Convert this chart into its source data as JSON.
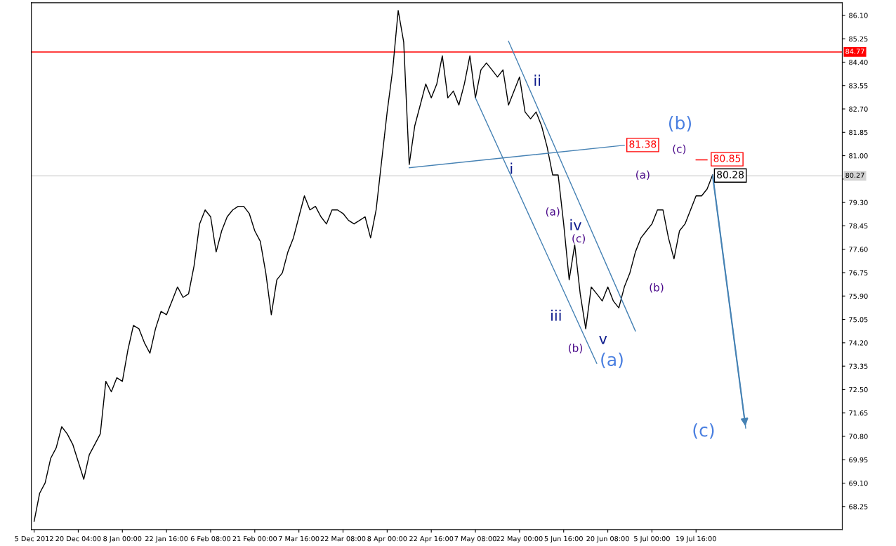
{
  "chart_data": {
    "type": "line",
    "categories": [
      "5 Dec 2012",
      null,
      null,
      null,
      null,
      null,
      null,
      null,
      "20 Dec 04:00",
      null,
      null,
      null,
      null,
      null,
      null,
      null,
      "8 Jan 00:00",
      null,
      null,
      null,
      null,
      null,
      null,
      null,
      "22 Jan 16:00",
      null,
      null,
      null,
      null,
      null,
      null,
      null,
      "6 Feb 08:00",
      null,
      null,
      null,
      null,
      null,
      null,
      null,
      "21 Feb 00:00",
      null,
      null,
      null,
      null,
      null,
      null,
      null,
      "7 Mar 16:00",
      null,
      null,
      null,
      null,
      null,
      null,
      null,
      "22 Mar 08:00",
      null,
      null,
      null,
      null,
      null,
      null,
      null,
      "8 Apr 00:00",
      null,
      null,
      null,
      null,
      null,
      null,
      null,
      "22 Apr 16:00",
      null,
      null,
      null,
      null,
      null,
      null,
      null,
      "7 May 08:00",
      null,
      null,
      null,
      null,
      null,
      null,
      null,
      "22 May 00:00",
      null,
      null,
      null,
      null,
      null,
      null,
      null,
      "5 Jun 16:00",
      null,
      null,
      null,
      null,
      null,
      null,
      null,
      "20 Jun 08:00",
      null,
      null,
      null,
      null,
      null,
      null,
      null,
      "5 Jul 00:00",
      null,
      null,
      null,
      null,
      null,
      null,
      null,
      "19 Jul 16:00",
      null,
      null,
      null,
      null,
      null,
      null,
      null,
      null,
      null,
      null,
      null,
      null,
      null,
      null,
      null,
      null,
      null,
      null,
      null,
      null,
      null,
      null,
      null,
      null,
      null,
      null
    ],
    "ylim": [
      67.41,
      86.56
    ],
    "yticks": [
      {
        "value": 68.25,
        "label": "68.25"
      },
      {
        "value": 69.1,
        "label": "69.10"
      },
      {
        "value": 69.95,
        "label": "69.95"
      },
      {
        "value": 70.8,
        "label": "70.80"
      },
      {
        "value": 71.65,
        "label": "71.65"
      },
      {
        "value": 72.5,
        "label": "72.50"
      },
      {
        "value": 73.35,
        "label": "73.35"
      },
      {
        "value": 74.2,
        "label": "74.20"
      },
      {
        "value": 75.05,
        "label": "75.05"
      },
      {
        "value": 75.9,
        "label": "75.90"
      },
      {
        "value": 76.75,
        "label": "76.75"
      },
      {
        "value": 77.6,
        "label": "77.60"
      },
      {
        "value": 78.45,
        "label": "78.45"
      },
      {
        "value": 79.3,
        "label": "79.30"
      },
      {
        "value": 80.15,
        "label": null
      },
      {
        "value": 81.0,
        "label": "81.00"
      },
      {
        "value": 81.85,
        "label": "81.85"
      },
      {
        "value": 82.7,
        "label": "82.70"
      },
      {
        "value": 83.55,
        "label": "83.55"
      },
      {
        "value": 84.4,
        "label": "84.40"
      },
      {
        "value": 85.25,
        "label": "85.25"
      },
      {
        "value": 86.1,
        "label": "86.10"
      }
    ],
    "grid": false,
    "legend": false,
    "series": [
      {
        "color": "#000000",
        "values": [
          67.71,
          68.73,
          69.11,
          70.0,
          70.38,
          71.15,
          70.89,
          70.51,
          69.88,
          69.24,
          70.13,
          70.51,
          70.89,
          72.8,
          72.42,
          72.93,
          72.8,
          73.94,
          74.83,
          74.71,
          74.2,
          73.82,
          74.71,
          75.34,
          75.22,
          75.72,
          76.23,
          75.85,
          75.98,
          77.0,
          78.52,
          79.03,
          78.78,
          77.5,
          78.27,
          78.78,
          79.03,
          79.16,
          79.16,
          78.9,
          78.27,
          77.89,
          76.74,
          75.22,
          76.49,
          76.74,
          77.5,
          78.01,
          78.78,
          79.54,
          79.03,
          79.16,
          78.78,
          78.52,
          79.03,
          79.03,
          78.9,
          78.65,
          78.52,
          78.65,
          78.78,
          78.01,
          79.03,
          80.81,
          82.59,
          84.12,
          86.28,
          85.13,
          80.68,
          82.08,
          82.84,
          83.61,
          83.1,
          83.61,
          84.63,
          83.1,
          83.35,
          82.84,
          83.61,
          84.63,
          83.1,
          84.12,
          84.37,
          84.12,
          83.86,
          84.12,
          82.84,
          83.35,
          83.86,
          82.59,
          82.34,
          82.59,
          82.08,
          81.32,
          80.3,
          80.3,
          78.52,
          76.49,
          77.76,
          75.98,
          74.71,
          76.23,
          75.98,
          75.72,
          76.23,
          75.72,
          75.47,
          76.23,
          76.74,
          77.5,
          78.01,
          78.27,
          78.52,
          79.03,
          79.03,
          78.01,
          77.25,
          78.27,
          78.52,
          79.03,
          79.54,
          79.54,
          79.79,
          80.3,
          null,
          null,
          null,
          null,
          null,
          null,
          null,
          null,
          null,
          null,
          null,
          null,
          null,
          null,
          null,
          null,
          null,
          null,
          null,
          null,
          null,
          null,
          null
        ]
      },
      {
        "color": "#4682b4",
        "values": [
          null,
          null,
          null,
          null,
          null,
          null,
          null,
          null,
          null,
          null,
          null,
          null,
          null,
          null,
          null,
          null,
          null,
          null,
          null,
          null,
          null,
          null,
          null,
          null,
          null,
          null,
          null,
          null,
          null,
          null,
          null,
          null,
          null,
          null,
          null,
          null,
          null,
          null,
          null,
          null,
          null,
          null,
          null,
          null,
          null,
          null,
          null,
          null,
          null,
          null,
          null,
          null,
          null,
          null,
          null,
          null,
          null,
          null,
          null,
          null,
          null,
          null,
          null,
          null,
          null,
          null,
          null,
          null,
          null,
          null,
          null,
          null,
          null,
          null,
          null,
          null,
          null,
          null,
          null,
          null,
          null,
          null,
          null,
          null,
          null,
          null,
          85.16,
          null,
          null,
          null,
          null,
          null,
          null,
          null,
          null,
          null,
          null,
          null,
          null,
          null,
          null,
          null,
          null,
          null,
          null,
          null,
          null,
          null,
          null,
          74.63,
          null,
          null,
          null,
          null,
          null,
          null,
          null,
          null,
          null,
          null,
          null,
          null,
          null,
          null,
          null,
          null,
          null,
          null,
          null,
          null,
          null,
          null,
          null,
          null,
          null,
          null,
          null,
          null,
          null,
          null,
          null,
          null,
          null,
          null,
          null,
          null,
          null
        ]
      },
      {
        "color": "#4682b4",
        "values": [
          null,
          null,
          null,
          null,
          null,
          null,
          null,
          null,
          null,
          null,
          null,
          null,
          null,
          null,
          null,
          null,
          null,
          null,
          null,
          null,
          null,
          null,
          null,
          null,
          null,
          null,
          null,
          null,
          null,
          null,
          null,
          null,
          null,
          null,
          null,
          null,
          null,
          null,
          null,
          null,
          null,
          null,
          null,
          null,
          null,
          null,
          null,
          null,
          null,
          null,
          null,
          null,
          null,
          null,
          null,
          null,
          null,
          null,
          null,
          null,
          null,
          null,
          null,
          null,
          null,
          null,
          null,
          null,
          null,
          null,
          null,
          null,
          null,
          null,
          null,
          null,
          null,
          null,
          null,
          null,
          83.1,
          null,
          null,
          null,
          null,
          null,
          null,
          null,
          null,
          null,
          null,
          null,
          null,
          null,
          null,
          null,
          null,
          null,
          null,
          null,
          null,
          null,
          73.45,
          null,
          null,
          null,
          null,
          null,
          null,
          null,
          null,
          null,
          null,
          null,
          null,
          null,
          null,
          null,
          null,
          null,
          null,
          null,
          null,
          null,
          null,
          null,
          null,
          null,
          null,
          null,
          null,
          null,
          null,
          null,
          null,
          null,
          null,
          null,
          null,
          null,
          null,
          null,
          null,
          null,
          null,
          null,
          null
        ]
      },
      {
        "color": "#4682b4",
        "values": [
          null,
          null,
          null,
          null,
          null,
          null,
          null,
          null,
          null,
          null,
          null,
          null,
          null,
          null,
          null,
          null,
          null,
          null,
          null,
          null,
          null,
          null,
          null,
          null,
          null,
          null,
          null,
          null,
          null,
          null,
          null,
          null,
          null,
          null,
          null,
          null,
          null,
          null,
          null,
          null,
          null,
          null,
          null,
          null,
          null,
          null,
          null,
          null,
          null,
          null,
          null,
          null,
          null,
          null,
          null,
          null,
          null,
          null,
          null,
          null,
          null,
          null,
          null,
          null,
          null,
          null,
          null,
          null,
          80.56,
          null,
          null,
          null,
          null,
          null,
          null,
          null,
          null,
          null,
          null,
          null,
          null,
          null,
          null,
          null,
          null,
          null,
          null,
          null,
          null,
          null,
          null,
          null,
          null,
          null,
          null,
          null,
          null,
          null,
          null,
          null,
          null,
          null,
          null,
          null,
          null,
          null,
          null,
          81.38,
          null,
          null,
          null,
          null,
          null,
          null,
          null,
          null,
          null,
          null,
          null,
          null,
          null,
          null,
          null,
          null,
          null,
          null,
          null,
          null,
          null,
          null,
          null,
          null,
          null,
          null,
          null,
          null,
          null,
          null,
          null,
          null,
          null,
          null,
          null,
          null,
          null,
          null,
          null
        ]
      },
      {
        "color": "#ff0000",
        "values": [
          null,
          null,
          null,
          null,
          null,
          null,
          null,
          null,
          null,
          null,
          null,
          null,
          null,
          null,
          null,
          null,
          null,
          null,
          null,
          null,
          null,
          null,
          null,
          null,
          null,
          null,
          null,
          null,
          null,
          null,
          null,
          null,
          null,
          null,
          null,
          null,
          null,
          null,
          null,
          null,
          null,
          null,
          null,
          null,
          null,
          null,
          null,
          null,
          null,
          null,
          null,
          null,
          null,
          null,
          null,
          null,
          null,
          null,
          null,
          null,
          null,
          null,
          null,
          null,
          null,
          null,
          null,
          null,
          null,
          null,
          null,
          null,
          null,
          null,
          null,
          null,
          null,
          null,
          null,
          null,
          null,
          null,
          null,
          null,
          null,
          null,
          null,
          null,
          null,
          null,
          null,
          null,
          null,
          null,
          null,
          null,
          null,
          null,
          null,
          null,
          null,
          null,
          null,
          null,
          null,
          null,
          null,
          null,
          null,
          null,
          null,
          null,
          null,
          null,
          null,
          null,
          null,
          null,
          null,
          null,
          80.85,
          null,
          80.85,
          null,
          null,
          null,
          null,
          null,
          null,
          null,
          null,
          null,
          null,
          null,
          null,
          null,
          null,
          null,
          null,
          null,
          null,
          null,
          null,
          null,
          null,
          null,
          null
        ]
      },
      {
        "color": "#4682b4",
        "values": [
          null,
          null,
          null,
          null,
          null,
          null,
          null,
          null,
          null,
          null,
          null,
          null,
          null,
          null,
          null,
          null,
          null,
          null,
          null,
          null,
          null,
          null,
          null,
          null,
          null,
          null,
          null,
          null,
          null,
          null,
          null,
          null,
          null,
          null,
          null,
          null,
          null,
          null,
          null,
          null,
          null,
          null,
          null,
          null,
          null,
          null,
          null,
          null,
          null,
          null,
          null,
          null,
          null,
          null,
          null,
          null,
          null,
          null,
          null,
          null,
          null,
          null,
          null,
          null,
          null,
          null,
          null,
          null,
          null,
          null,
          null,
          null,
          null,
          null,
          null,
          null,
          null,
          null,
          null,
          null,
          null,
          null,
          null,
          null,
          null,
          null,
          null,
          null,
          null,
          null,
          null,
          null,
          null,
          null,
          null,
          null,
          null,
          null,
          null,
          null,
          null,
          null,
          null,
          null,
          null,
          null,
          null,
          null,
          null,
          null,
          null,
          null,
          null,
          null,
          null,
          null,
          null,
          null,
          null,
          null,
          null,
          null,
          null,
          80.3,
          null,
          null,
          null,
          null,
          null,
          71.1,
          null,
          null,
          null,
          null,
          null,
          null,
          null,
          null,
          null,
          null,
          null,
          null,
          null,
          null,
          null,
          null,
          null
        ]
      }
    ],
    "ref_lines": [
      {
        "axis": "y",
        "value": 84.77,
        "label": "84.77",
        "color": "#ff0000"
      },
      {
        "axis": "y",
        "value": 80.27,
        "label": "80.27",
        "color": "#d3d3d3"
      }
    ],
    "annotations": [
      "ii",
      "i",
      "iv",
      "iii",
      "v",
      "(a)",
      "(c)",
      "(b)",
      "(a)",
      "(b)",
      "(c)",
      "(a)",
      "(b)",
      "(c)",
      "81.38",
      "80.85",
      {
        "text": "80.28",
        "y": 80.28
      }
    ]
  }
}
